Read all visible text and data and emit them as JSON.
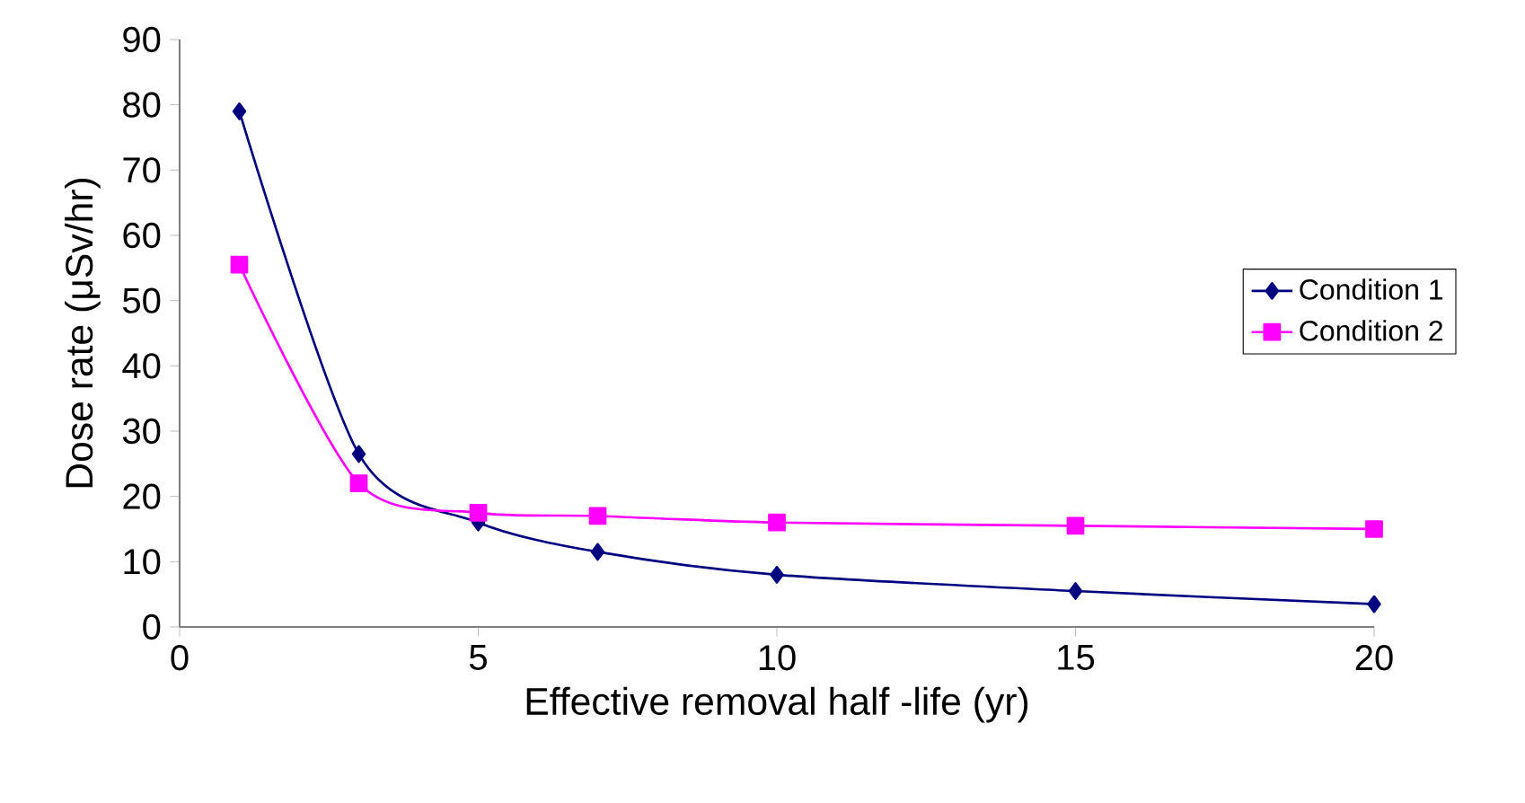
{
  "chart_data": {
    "type": "line",
    "xlabel": "Effective removal half -life (yr)",
    "ylabel": "Dose rate (μSv/hr)",
    "x": [
      1,
      3,
      5,
      7,
      10,
      15,
      20
    ],
    "series": [
      {
        "name": "Condition 1",
        "color": "#000080",
        "marker": "diamond",
        "values": [
          79,
          26.5,
          16,
          11.5,
          8,
          5.5,
          3.5
        ]
      },
      {
        "name": "Condition 2",
        "color": "#ff00ff",
        "marker": "square",
        "values": [
          55.5,
          22,
          17.5,
          17,
          16,
          15.5,
          15
        ]
      }
    ],
    "xlim": [
      0,
      20
    ],
    "xticks": [
      0,
      5,
      10,
      15,
      20
    ],
    "ylim": [
      0,
      90
    ],
    "yticks": [
      0,
      10,
      20,
      30,
      40,
      50,
      60,
      70,
      80,
      90
    ],
    "legend": "right",
    "grid": false
  }
}
